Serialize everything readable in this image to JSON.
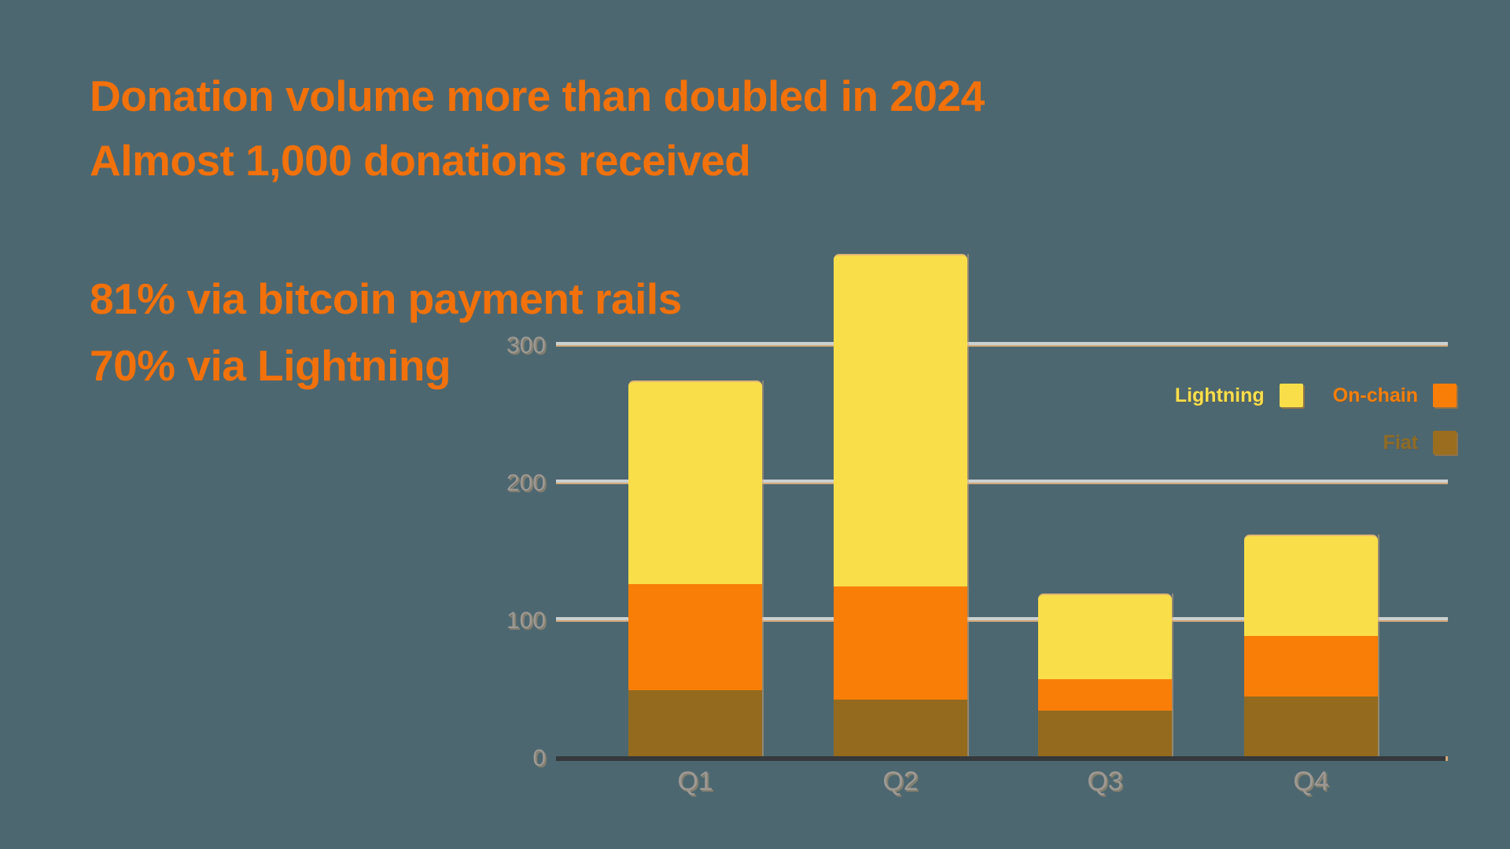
{
  "header": {
    "line1": "Donation volume more than doubled in 2024",
    "line2": "Almost 1,000 donations received"
  },
  "stats": {
    "line1": "81% via bitcoin payment rails",
    "line2": "70% via Lightning"
  },
  "colors": {
    "background": "#4D6770",
    "heading_text": "#F2710A",
    "lightning": "#F9DE4A",
    "on_chain": "#F87E08",
    "fiat": "#946A1E",
    "axis_label": "#9D9994",
    "gridline": "#CBD0D1",
    "gridline_shadow": "#D2A878",
    "axis_line": "#35393B"
  },
  "legend": {
    "rows": [
      [
        {
          "label": "Lightning",
          "text_color": "#F9DE4A",
          "swatch_color": "#F9DE4A"
        },
        {
          "label": "On-chain",
          "text_color": "#F87E08",
          "swatch_color": "#F87E08"
        }
      ],
      [
        {
          "label": "Fiat",
          "text_color": "#8F6B25",
          "swatch_color": "#9A6E1E"
        }
      ]
    ]
  },
  "chart_data": {
    "type": "bar",
    "stacked": true,
    "title": "",
    "xlabel": "",
    "ylabel": "",
    "categories": [
      "Q1",
      "Q2",
      "Q3",
      "Q4"
    ],
    "series": [
      {
        "name": "Fiat",
        "color": "#946A1E",
        "values": [
          50,
          43,
          35,
          45
        ]
      },
      {
        "name": "On-chain",
        "color": "#F87E08",
        "values": [
          77,
          82,
          23,
          44
        ]
      },
      {
        "name": "Lightning",
        "color": "#F9DE4A",
        "values": [
          148,
          242,
          62,
          74
        ]
      }
    ],
    "stack_totals": [
      275,
      367,
      120,
      163
    ],
    "y_ticks": [
      0,
      100,
      200,
      300
    ],
    "ylim": [
      0,
      380
    ],
    "grid": true,
    "legend_position": "top-right"
  }
}
